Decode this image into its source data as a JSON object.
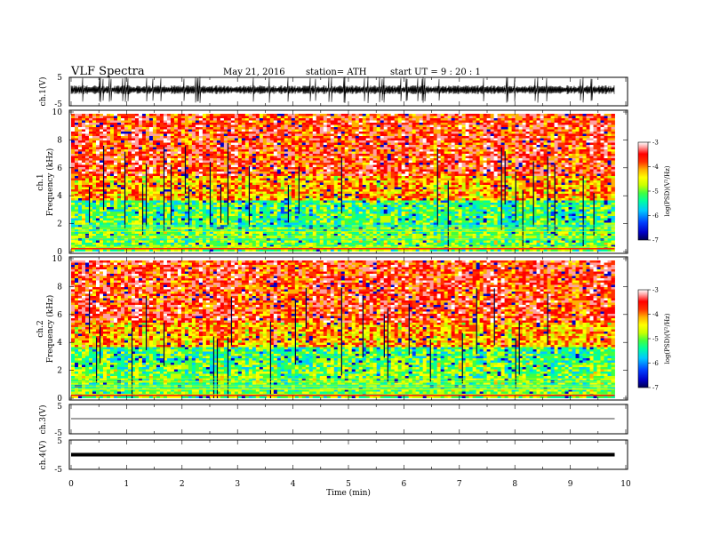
{
  "header": {
    "title": "VLF  Spectra",
    "date": "May 21, 2016",
    "station": "station= ATH",
    "start": "start  UT  =    9  : 20 : 1"
  },
  "chart_data": [
    {
      "type": "line",
      "panel": "ch1-waveform",
      "ylabel": "ch.1(V)",
      "ylim": [
        -5,
        5
      ],
      "xlim": [
        0,
        10
      ],
      "y_ticks": [
        "5",
        "-5"
      ],
      "baseline": -1.8
    },
    {
      "type": "heatmap",
      "panel": "ch1-spectrogram",
      "ylabel": "ch.1\nFrequency  (kHz)",
      "ylabel_line1": "ch.1",
      "ylabel_line2": "Frequency  (kHz)",
      "ylim": [
        0,
        10
      ],
      "xlim": [
        0,
        10
      ],
      "y_ticks": [
        "0",
        "2",
        "4",
        "6",
        "8",
        "10"
      ],
      "colorbar": {
        "label": "log(PSD)(V²/Hz)",
        "range": [
          -7,
          -3
        ],
        "ticks": [
          "-3",
          "-4",
          "-5",
          "-6",
          "-7"
        ]
      }
    },
    {
      "type": "heatmap",
      "panel": "ch2-spectrogram",
      "ylabel_line1": "ch.2",
      "ylabel_line2": "Frequency  (kHz)",
      "ylim": [
        0,
        10
      ],
      "xlim": [
        0,
        10
      ],
      "y_ticks": [
        "0",
        "2",
        "4",
        "6",
        "8",
        "10"
      ],
      "colorbar": {
        "label": "log(PSD)(V²/Hz)",
        "range": [
          -7,
          -3
        ],
        "ticks": [
          "-3",
          "-4",
          "-5",
          "-6",
          "-7"
        ]
      }
    },
    {
      "type": "line",
      "panel": "ch3-waveform",
      "ylabel": "ch.3(V)",
      "ylim": [
        -5,
        5
      ],
      "xlim": [
        0,
        10
      ],
      "y_ticks": [
        "5",
        "-5"
      ],
      "baseline": 0
    },
    {
      "type": "line",
      "panel": "ch4-waveform",
      "ylabel": "ch.4(V)",
      "ylim": [
        -5,
        5
      ],
      "xlim": [
        0,
        10
      ],
      "y_ticks": [
        "5",
        "-5"
      ],
      "baseline": 0
    }
  ],
  "x_axis": {
    "label": "Time  (min)",
    "ticks": [
      "0",
      "1",
      "2",
      "3",
      "4",
      "5",
      "6",
      "7",
      "8",
      "9",
      "10"
    ],
    "data_end": 9.8
  },
  "colorbar_label": "log(PSD)(V²/Hz)",
  "colors": {
    "cmap": [
      "#000050",
      "#0000c8",
      "#0040ff",
      "#00c8ff",
      "#00ffa0",
      "#40ff40",
      "#c8ff00",
      "#ffff00",
      "#ffb000",
      "#ff3000",
      "#ff0000",
      "#ffa0a0",
      "#ffffff"
    ]
  }
}
